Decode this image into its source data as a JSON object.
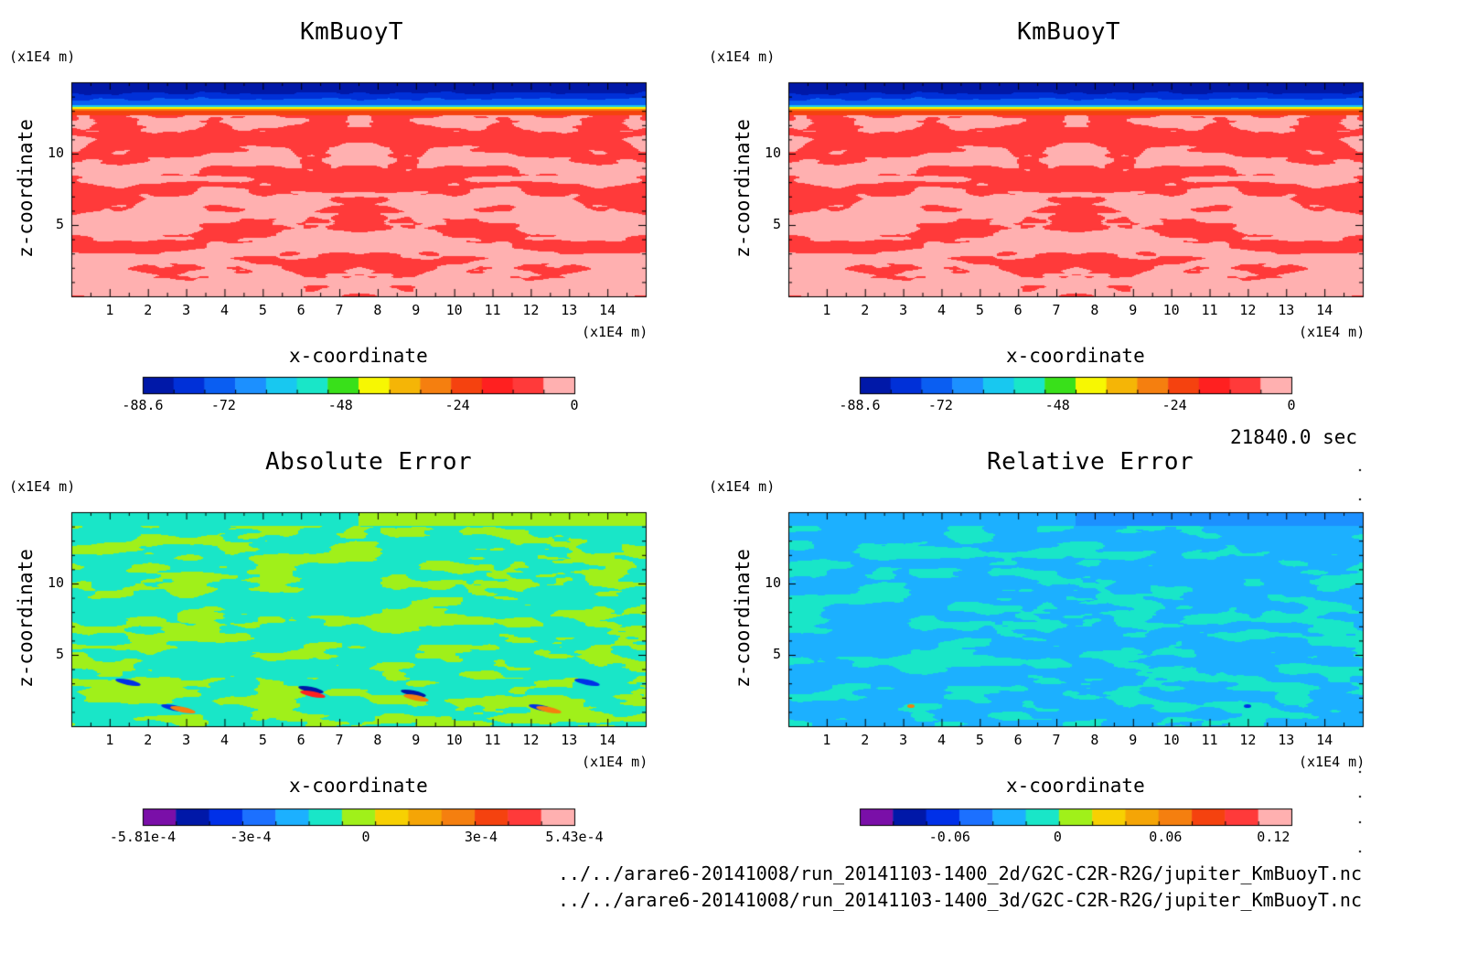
{
  "figure": {
    "time_label": "21840.0 sec",
    "files": [
      "../../arare6-20141008/run_20141103-1400_2d/G2C-C2R-R2G/jupiter_KmBuoyT.nc",
      "../../arare6-20141008/run_20141103-1400_3d/G2C-C2R-R2G/jupiter_KmBuoyT.nc"
    ]
  },
  "chart_data": [
    {
      "type": "heatmap",
      "title": "KmBuoyT",
      "xlabel": "x-coordinate",
      "ylabel": "z-coordinate",
      "x_unit": "(x1E4 m)",
      "z_unit": "(x1E4 m)",
      "xlim": [
        0,
        15
      ],
      "zlim": [
        0,
        15
      ],
      "xticks": [
        "1",
        "2",
        "3",
        "4",
        "5",
        "6",
        "7",
        "8",
        "9",
        "10",
        "11",
        "12",
        "13",
        "14"
      ],
      "zticks": [
        "5",
        "10"
      ],
      "colorbar": {
        "min": -88.6,
        "max": 0,
        "tick_labels": [
          "-88.6",
          "-72",
          "-48",
          "-24",
          "0"
        ],
        "tick_values": [
          -88.6,
          -72,
          -48,
          -24,
          0
        ],
        "colors": [
          "#0018a8",
          "#0030d8",
          "#0a5ef2",
          "#1c90ff",
          "#18c8f0",
          "#19e6c8",
          "#39e01a",
          "#f7f702",
          "#f5b506",
          "#f57f0f",
          "#f5420f",
          "#ff2020",
          "#ff3a3a",
          "#ffb0b0"
        ]
      },
      "field": "kmbuoy_2d"
    },
    {
      "type": "heatmap",
      "title": "KmBuoyT",
      "xlabel": "x-coordinate",
      "ylabel": "z-coordinate",
      "x_unit": "(x1E4 m)",
      "z_unit": "(x1E4 m)",
      "xlim": [
        0,
        15
      ],
      "zlim": [
        0,
        15
      ],
      "xticks": [
        "1",
        "2",
        "3",
        "4",
        "5",
        "6",
        "7",
        "8",
        "9",
        "10",
        "11",
        "12",
        "13",
        "14"
      ],
      "zticks": [
        "5",
        "10"
      ],
      "colorbar": {
        "min": -88.6,
        "max": 0,
        "tick_labels": [
          "-88.6",
          "-72",
          "-48",
          "-24",
          "0"
        ],
        "tick_values": [
          -88.6,
          -72,
          -48,
          -24,
          0
        ],
        "colors": [
          "#0018a8",
          "#0030d8",
          "#0a5ef2",
          "#1c90ff",
          "#18c8f0",
          "#19e6c8",
          "#39e01a",
          "#f7f702",
          "#f5b506",
          "#f57f0f",
          "#f5420f",
          "#ff2020",
          "#ff3a3a",
          "#ffb0b0"
        ]
      },
      "field": "kmbuoy_3d"
    },
    {
      "type": "heatmap",
      "title": "Absolute Error",
      "xlabel": "x-coordinate",
      "ylabel": "z-coordinate",
      "x_unit": "(x1E4 m)",
      "z_unit": "(x1E4 m)",
      "xlim": [
        0,
        15
      ],
      "zlim": [
        0,
        15
      ],
      "xticks": [
        "1",
        "2",
        "3",
        "4",
        "5",
        "6",
        "7",
        "8",
        "9",
        "10",
        "11",
        "12",
        "13",
        "14"
      ],
      "zticks": [
        "5",
        "10"
      ],
      "colorbar": {
        "min": -0.000581,
        "max": 0.000543,
        "tick_labels": [
          "-5.81e-4",
          "-3e-4",
          "0",
          "3e-4",
          "5.43e-4"
        ],
        "tick_values": [
          -0.000581,
          -0.0003,
          0,
          0.0003,
          0.000543
        ],
        "colors": [
          "#7a0fa8",
          "#0018a8",
          "#0030e8",
          "#1c70ff",
          "#1cb0ff",
          "#19e6c8",
          "#a0f01a",
          "#f7d002",
          "#f5a506",
          "#f57f0f",
          "#f5420f",
          "#ff3a3a",
          "#ffb0b0"
        ]
      },
      "field": "abs_error"
    },
    {
      "type": "heatmap",
      "title": "Relative Error",
      "xlabel": "x-coordinate",
      "ylabel": "z-coordinate",
      "x_unit": "(x1E4 m)",
      "z_unit": "(x1E4 m)",
      "xlim": [
        0,
        15
      ],
      "zlim": [
        0,
        15
      ],
      "xticks": [
        "1",
        "2",
        "3",
        "4",
        "5",
        "6",
        "7",
        "8",
        "9",
        "10",
        "11",
        "12",
        "13",
        "14"
      ],
      "zticks": [
        "5",
        "10"
      ],
      "colorbar": {
        "min": -0.11,
        "max": 0.13,
        "tick_labels": [
          "-0.06",
          "0",
          "0.06",
          "0.12"
        ],
        "tick_values": [
          -0.06,
          0,
          0.06,
          0.12
        ],
        "colors": [
          "#7a0fa8",
          "#0018a8",
          "#0030e8",
          "#1c70ff",
          "#1cb0ff",
          "#19e6c8",
          "#a0f01a",
          "#f7d002",
          "#f5a506",
          "#f57f0f",
          "#f5420f",
          "#ff3a3a",
          "#ffb0b0"
        ]
      },
      "field": "rel_error"
    }
  ]
}
